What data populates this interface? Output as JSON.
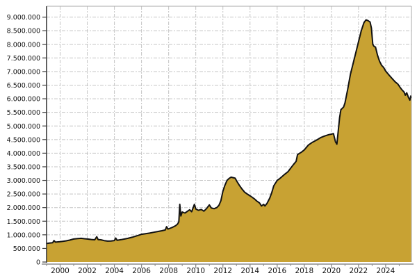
{
  "chart_data": {
    "type": "area",
    "title": "",
    "xlabel": "",
    "ylabel": "",
    "grid": true,
    "legend": "none",
    "x_domain": [
      1999.0,
      2025.9
    ],
    "y_domain": [
      0,
      9400000
    ],
    "x_ticks": [
      {
        "value": 2000,
        "label": "2000"
      },
      {
        "value": 2002,
        "label": "2002"
      },
      {
        "value": 2004,
        "label": "2004"
      },
      {
        "value": 2006,
        "label": "2006"
      },
      {
        "value": 2008,
        "label": "2008"
      },
      {
        "value": 2010,
        "label": "2010"
      },
      {
        "value": 2012,
        "label": "2012"
      },
      {
        "value": 2014,
        "label": "2014"
      },
      {
        "value": 2016,
        "label": "2016"
      },
      {
        "value": 2018,
        "label": "2018"
      },
      {
        "value": 2020,
        "label": "2020"
      },
      {
        "value": 2022,
        "label": "2022"
      },
      {
        "value": 2024,
        "label": "2024"
      }
    ],
    "y_ticks": [
      {
        "value": 0,
        "label": "0"
      },
      {
        "value": 500000,
        "label": "500.000"
      },
      {
        "value": 1000000,
        "label": "1.000.000"
      },
      {
        "value": 1500000,
        "label": "1.500.000"
      },
      {
        "value": 2000000,
        "label": "2.000.000"
      },
      {
        "value": 2500000,
        "label": "2.500.000"
      },
      {
        "value": 3000000,
        "label": "3.000.000"
      },
      {
        "value": 3500000,
        "label": "3.500.000"
      },
      {
        "value": 4000000,
        "label": "4.000.000"
      },
      {
        "value": 4500000,
        "label": "4.500.000"
      },
      {
        "value": 5000000,
        "label": "5.000.000"
      },
      {
        "value": 5500000,
        "label": "5.500.000"
      },
      {
        "value": 6000000,
        "label": "6.000.000"
      },
      {
        "value": 6500000,
        "label": "6.500.000"
      },
      {
        "value": 7000000,
        "label": "7.000.000"
      },
      {
        "value": 7500000,
        "label": "7.500.000"
      },
      {
        "value": 8000000,
        "label": "8.000.000"
      },
      {
        "value": 8500000,
        "label": "8.500.000"
      },
      {
        "value": 9000000,
        "label": "9.000.000"
      }
    ],
    "colors": {
      "fill": "#C8A233",
      "line": "#121212",
      "grid": "#c4c4c4",
      "axis_left": "#3a3a3a",
      "axis_bottom": "#8a8a8a",
      "frame": "#aaaaaa",
      "background": "#ffffff"
    },
    "series": [
      {
        "name": "value",
        "points": [
          [
            1999.0,
            680000
          ],
          [
            1999.2,
            695000
          ],
          [
            1999.45,
            710000
          ],
          [
            1999.55,
            790000
          ],
          [
            1999.65,
            730000
          ],
          [
            1999.85,
            740000
          ],
          [
            2000.0,
            748000
          ],
          [
            2000.2,
            762000
          ],
          [
            2000.45,
            780000
          ],
          [
            2000.7,
            805000
          ],
          [
            2001.0,
            845000
          ],
          [
            2001.3,
            862000
          ],
          [
            2001.55,
            870000
          ],
          [
            2001.8,
            856000
          ],
          [
            2002.0,
            845000
          ],
          [
            2002.3,
            828000
          ],
          [
            2002.55,
            818000
          ],
          [
            2002.7,
            930000
          ],
          [
            2002.8,
            824000
          ],
          [
            2003.0,
            818000
          ],
          [
            2003.25,
            788000
          ],
          [
            2003.5,
            768000
          ],
          [
            2003.75,
            775000
          ],
          [
            2004.0,
            790000
          ],
          [
            2004.1,
            880000
          ],
          [
            2004.2,
            800000
          ],
          [
            2004.5,
            822000
          ],
          [
            2004.75,
            846000
          ],
          [
            2005.0,
            872000
          ],
          [
            2005.3,
            910000
          ],
          [
            2005.55,
            948000
          ],
          [
            2005.8,
            985000
          ],
          [
            2006.0,
            1020000
          ],
          [
            2006.3,
            1042000
          ],
          [
            2006.6,
            1062000
          ],
          [
            2006.9,
            1092000
          ],
          [
            2007.2,
            1122000
          ],
          [
            2007.5,
            1150000
          ],
          [
            2007.75,
            1178000
          ],
          [
            2007.85,
            1300000
          ],
          [
            2007.95,
            1210000
          ],
          [
            2008.1,
            1240000
          ],
          [
            2008.3,
            1280000
          ],
          [
            2008.5,
            1330000
          ],
          [
            2008.65,
            1390000
          ],
          [
            2008.75,
            1480000
          ],
          [
            2008.82,
            2120000
          ],
          [
            2008.9,
            1690000
          ],
          [
            2009.0,
            1840000
          ],
          [
            2009.2,
            1800000
          ],
          [
            2009.4,
            1870000
          ],
          [
            2009.55,
            1920000
          ],
          [
            2009.7,
            1850000
          ],
          [
            2009.9,
            2120000
          ],
          [
            2010.0,
            1950000
          ],
          [
            2010.2,
            1900000
          ],
          [
            2010.4,
            1930000
          ],
          [
            2010.6,
            1870000
          ],
          [
            2010.8,
            1970000
          ],
          [
            2011.0,
            2100000
          ],
          [
            2011.15,
            1985000
          ],
          [
            2011.35,
            1960000
          ],
          [
            2011.55,
            2000000
          ],
          [
            2011.7,
            2080000
          ],
          [
            2011.85,
            2250000
          ],
          [
            2012.0,
            2600000
          ],
          [
            2012.15,
            2820000
          ],
          [
            2012.3,
            3000000
          ],
          [
            2012.45,
            3070000
          ],
          [
            2012.6,
            3120000
          ],
          [
            2012.75,
            3100000
          ],
          [
            2012.9,
            3080000
          ],
          [
            2013.05,
            2950000
          ],
          [
            2013.2,
            2830000
          ],
          [
            2013.4,
            2690000
          ],
          [
            2013.6,
            2570000
          ],
          [
            2013.85,
            2480000
          ],
          [
            2014.1,
            2400000
          ],
          [
            2014.3,
            2330000
          ],
          [
            2014.5,
            2240000
          ],
          [
            2014.7,
            2170000
          ],
          [
            2014.85,
            2060000
          ],
          [
            2015.0,
            2120000
          ],
          [
            2015.1,
            2060000
          ],
          [
            2015.25,
            2150000
          ],
          [
            2015.45,
            2350000
          ],
          [
            2015.6,
            2550000
          ],
          [
            2015.75,
            2800000
          ],
          [
            2016.0,
            3000000
          ],
          [
            2016.2,
            3070000
          ],
          [
            2016.5,
            3200000
          ],
          [
            2016.8,
            3320000
          ],
          [
            2017.0,
            3450000
          ],
          [
            2017.2,
            3580000
          ],
          [
            2017.4,
            3700000
          ],
          [
            2017.5,
            3950000
          ],
          [
            2017.8,
            4040000
          ],
          [
            2018.0,
            4120000
          ],
          [
            2018.3,
            4300000
          ],
          [
            2018.6,
            4400000
          ],
          [
            2018.9,
            4480000
          ],
          [
            2019.2,
            4570000
          ],
          [
            2019.5,
            4630000
          ],
          [
            2019.8,
            4680000
          ],
          [
            2020.0,
            4700000
          ],
          [
            2020.15,
            4720000
          ],
          [
            2020.3,
            4420000
          ],
          [
            2020.4,
            4330000
          ],
          [
            2020.5,
            4800000
          ],
          [
            2020.6,
            5300000
          ],
          [
            2020.7,
            5600000
          ],
          [
            2020.9,
            5700000
          ],
          [
            2021.0,
            5850000
          ],
          [
            2021.2,
            6350000
          ],
          [
            2021.4,
            6900000
          ],
          [
            2021.6,
            7300000
          ],
          [
            2021.8,
            7700000
          ],
          [
            2022.0,
            8100000
          ],
          [
            2022.2,
            8500000
          ],
          [
            2022.4,
            8800000
          ],
          [
            2022.55,
            8900000
          ],
          [
            2022.7,
            8870000
          ],
          [
            2022.85,
            8820000
          ],
          [
            2022.95,
            8600000
          ],
          [
            2023.05,
            8000000
          ],
          [
            2023.15,
            7920000
          ],
          [
            2023.25,
            7900000
          ],
          [
            2023.4,
            7600000
          ],
          [
            2023.55,
            7380000
          ],
          [
            2023.7,
            7230000
          ],
          [
            2023.85,
            7150000
          ],
          [
            2024.0,
            7020000
          ],
          [
            2024.2,
            6900000
          ],
          [
            2024.45,
            6760000
          ],
          [
            2024.7,
            6620000
          ],
          [
            2024.9,
            6540000
          ],
          [
            2025.05,
            6430000
          ],
          [
            2025.2,
            6330000
          ],
          [
            2025.35,
            6250000
          ],
          [
            2025.45,
            6130000
          ],
          [
            2025.55,
            6220000
          ],
          [
            2025.68,
            6050000
          ],
          [
            2025.78,
            5950000
          ],
          [
            2025.85,
            6100000
          ],
          [
            2025.9,
            6060000
          ]
        ]
      }
    ]
  }
}
